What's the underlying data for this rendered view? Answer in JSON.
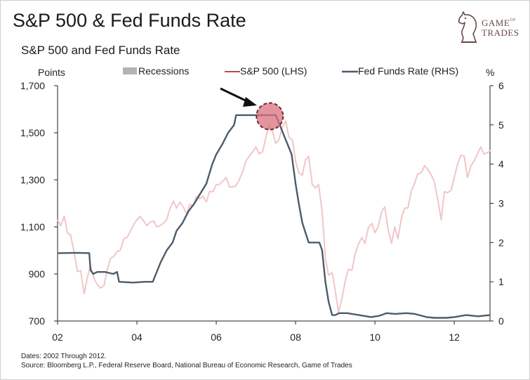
{
  "title": "S&P 500 & Fed Funds Rate",
  "logo": {
    "line1": "GAME",
    "of": "OF",
    "line2": "TRADES"
  },
  "footer": {
    "dates": "Dates: 2002 Through 2012.",
    "source": "Source: Bloomberg L.P., Federal Reserve Board, National Bureau of Economic Research, Game of Trades"
  },
  "colors": {
    "sp500": "#f2c6c6",
    "sp500_legend": "#b84c4c",
    "fed": "#4b5c6b",
    "recession": "#b3b3b3",
    "highlight": "#d9707f",
    "highlight_border": "#6b2b2b"
  },
  "chart_data": {
    "type": "line",
    "title": "S&P 500 and Fed Funds Rate",
    "xlabel": "",
    "ylabel_left": "Points",
    "ylabel_right": "%",
    "xlim": [
      2002.0,
      2012.9
    ],
    "ylim_left": [
      700,
      1700
    ],
    "ylim_right": [
      0,
      6
    ],
    "x_ticks": [
      2002,
      2004,
      2006,
      2008,
      2010,
      2012
    ],
    "x_tick_labels": [
      "02",
      "04",
      "06",
      "08",
      "10",
      "12"
    ],
    "y_left_ticks": [
      700,
      900,
      1100,
      1300,
      1500,
      1700
    ],
    "y_left_tick_labels": [
      "700",
      "900",
      "1,300",
      "1,500",
      "1,700"
    ],
    "y_left_tick_labels_full": [
      "700",
      "900",
      "1,100",
      "1,300",
      "1,500",
      "1,700"
    ],
    "y_right_ticks": [
      0,
      1,
      2,
      3,
      4,
      5,
      6
    ],
    "y_right_tick_labels": [
      "0",
      "1",
      "2",
      "3",
      "4",
      "5",
      "6"
    ],
    "legend": [
      {
        "name": "Recessions",
        "kind": "box"
      },
      {
        "name": "S&P 500 (LHS)",
        "kind": "line"
      },
      {
        "name": "Fed Funds Rate (RHS)",
        "kind": "line"
      }
    ],
    "annotations": [
      {
        "type": "arrow",
        "from": [
          2006.0,
          1690
        ],
        "to": [
          2007.05,
          1610
        ]
      },
      {
        "type": "circle",
        "x": 2007.35,
        "y": 1570
      }
    ],
    "series": [
      {
        "name": "S&P 500 (LHS)",
        "axis": "left",
        "x": [
          2002.0,
          2002.08,
          2002.17,
          2002.25,
          2002.33,
          2002.42,
          2002.5,
          2002.58,
          2002.67,
          2002.75,
          2002.83,
          2002.92,
          2003.0,
          2003.08,
          2003.17,
          2003.25,
          2003.33,
          2003.42,
          2003.5,
          2003.58,
          2003.67,
          2003.75,
          2003.83,
          2003.92,
          2004.0,
          2004.08,
          2004.17,
          2004.25,
          2004.33,
          2004.42,
          2004.5,
          2004.58,
          2004.67,
          2004.75,
          2004.83,
          2004.92,
          2005.0,
          2005.08,
          2005.17,
          2005.25,
          2005.33,
          2005.42,
          2005.5,
          2005.58,
          2005.67,
          2005.75,
          2005.83,
          2005.92,
          2006.0,
          2006.08,
          2006.17,
          2006.25,
          2006.33,
          2006.42,
          2006.5,
          2006.58,
          2006.67,
          2006.75,
          2006.83,
          2006.92,
          2007.0,
          2007.08,
          2007.17,
          2007.25,
          2007.33,
          2007.42,
          2007.5,
          2007.58,
          2007.67,
          2007.75,
          2007.83,
          2007.92,
          2008.0,
          2008.08,
          2008.17,
          2008.25,
          2008.33,
          2008.42,
          2008.5,
          2008.58,
          2008.67,
          2008.75,
          2008.83,
          2008.92,
          2009.0,
          2009.08,
          2009.17,
          2009.25,
          2009.33,
          2009.42,
          2009.5,
          2009.58,
          2009.67,
          2009.75,
          2009.83,
          2009.92,
          2010.0,
          2010.08,
          2010.17,
          2010.25,
          2010.33,
          2010.42,
          2010.5,
          2010.58,
          2010.67,
          2010.75,
          2010.83,
          2010.92,
          2011.0,
          2011.08,
          2011.17,
          2011.25,
          2011.33,
          2011.42,
          2011.5,
          2011.58,
          2011.67,
          2011.75,
          2011.83,
          2011.92,
          2012.0,
          2012.08,
          2012.17,
          2012.25,
          2012.33,
          2012.42,
          2012.5,
          2012.58,
          2012.67,
          2012.75,
          2012.83,
          2012.92
        ],
        "y": [
          1130,
          1105,
          1145,
          1075,
          1065,
          990,
          910,
          915,
          815,
          885,
          935,
          880,
          855,
          840,
          850,
          915,
          965,
          975,
          995,
          1000,
          1050,
          1055,
          1080,
          1110,
          1130,
          1145,
          1125,
          1105,
          1120,
          1125,
          1100,
          1105,
          1115,
          1130,
          1175,
          1210,
          1180,
          1205,
          1185,
          1155,
          1195,
          1190,
          1230,
          1220,
          1230,
          1205,
          1250,
          1250,
          1280,
          1280,
          1295,
          1310,
          1270,
          1270,
          1275,
          1300,
          1335,
          1380,
          1400,
          1420,
          1440,
          1410,
          1420,
          1480,
          1530,
          1505,
          1455,
          1470,
          1525,
          1550,
          1480,
          1470,
          1380,
          1330,
          1320,
          1385,
          1400,
          1280,
          1265,
          1280,
          1165,
          970,
          895,
          905,
          830,
          735,
          795,
          870,
          920,
          915,
          985,
          1025,
          1055,
          1030,
          1095,
          1115,
          1075,
          1100,
          1165,
          1185,
          1090,
          1030,
          1100,
          1050,
          1140,
          1180,
          1180,
          1255,
          1285,
          1325,
          1330,
          1360,
          1345,
          1320,
          1290,
          1220,
          1130,
          1250,
          1245,
          1255,
          1310,
          1365,
          1405,
          1400,
          1310,
          1360,
          1380,
          1410,
          1440,
          1410,
          1415,
          1425
        ]
      },
      {
        "name": "Fed Funds Rate (RHS)",
        "axis": "right",
        "x": [
          2002.0,
          2002.5,
          2002.8,
          2002.83,
          2002.9,
          2003.0,
          2003.2,
          2003.4,
          2003.5,
          2003.55,
          2003.9,
          2004.2,
          2004.4,
          2004.5,
          2004.6,
          2004.75,
          2004.9,
          2005.0,
          2005.15,
          2005.3,
          2005.45,
          2005.6,
          2005.75,
          2005.9,
          2006.0,
          2006.15,
          2006.3,
          2006.45,
          2006.5,
          2006.6,
          2007.0,
          2007.5,
          2007.6,
          2007.7,
          2007.8,
          2007.9,
          2008.0,
          2008.08,
          2008.17,
          2008.25,
          2008.33,
          2008.5,
          2008.6,
          2008.67,
          2008.75,
          2008.83,
          2008.92,
          2009.0,
          2009.1,
          2009.3,
          2009.6,
          2009.9,
          2010.1,
          2010.3,
          2010.5,
          2010.8,
          2011.0,
          2011.3,
          2011.5,
          2011.8,
          2012.0,
          2012.3,
          2012.6,
          2012.9
        ],
        "y": [
          1.73,
          1.74,
          1.73,
          1.3,
          1.2,
          1.25,
          1.25,
          1.2,
          1.25,
          1.0,
          0.98,
          1.0,
          1.0,
          1.25,
          1.5,
          1.8,
          2.0,
          2.3,
          2.5,
          2.8,
          3.0,
          3.25,
          3.5,
          4.0,
          4.25,
          4.5,
          4.8,
          5.0,
          5.25,
          5.25,
          5.25,
          5.25,
          5.0,
          4.75,
          4.5,
          4.25,
          3.5,
          3.0,
          2.5,
          2.25,
          2.0,
          2.0,
          2.0,
          1.8,
          1.0,
          0.5,
          0.15,
          0.15,
          0.2,
          0.2,
          0.15,
          0.1,
          0.13,
          0.2,
          0.18,
          0.2,
          0.18,
          0.1,
          0.08,
          0.08,
          0.1,
          0.15,
          0.12,
          0.15
        ]
      }
    ]
  }
}
